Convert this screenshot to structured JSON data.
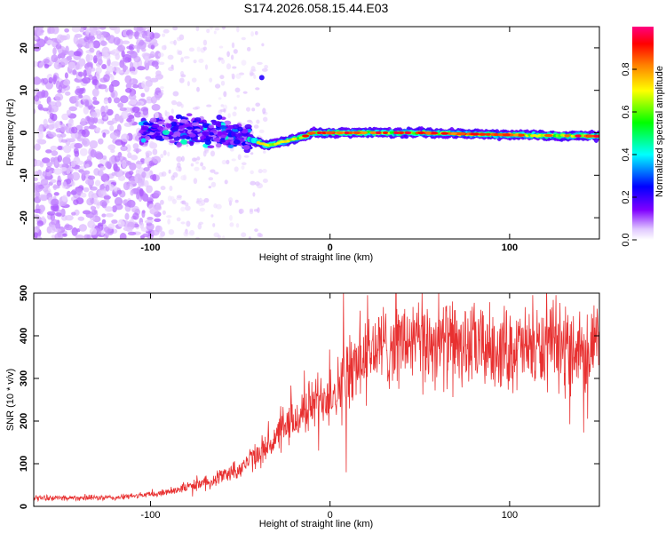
{
  "title": "S174.2026.058.15.44.E03",
  "chart_data": [
    {
      "type": "heatmap",
      "name": "spectrogram",
      "xlabel": "Height of straight line (km)",
      "ylabel": "Frequency (Hz)",
      "xlim": [
        -165,
        150
      ],
      "ylim": [
        -25,
        25
      ],
      "xticks": [
        -100,
        0,
        100
      ],
      "xtick_labels": [
        "-100",
        "0",
        "100"
      ],
      "yticks": [
        20,
        10,
        0,
        -10,
        -20
      ],
      "ytick_labels": [
        "20",
        "10",
        "0",
        "-10",
        "-20"
      ],
      "colorbar": {
        "label": "Normalized spectral amplitude",
        "range": [
          0.0,
          1.0
        ],
        "ticks": [
          0.0,
          0.2,
          0.4,
          0.6,
          0.8
        ],
        "tick_labels": [
          "0.0",
          "0.2",
          "0.4",
          "0.6",
          "0.8"
        ],
        "colormap": [
          "#ffffff",
          "#cc99ff",
          "#8000ff",
          "#0000ff",
          "#00ffff",
          "#00ff00",
          "#ffff00",
          "#ff8000",
          "#ff0000",
          "#ff0080"
        ]
      },
      "feature": {
        "description_points_x": [
          -100,
          -80,
          -60,
          -45,
          -35,
          -25,
          -15,
          -10,
          0,
          50,
          100,
          150
        ],
        "description_points_freq": [
          0.5,
          1.0,
          0.0,
          -1.5,
          -3.0,
          -2.0,
          -1.0,
          0.0,
          0.0,
          0.0,
          -0.5,
          -0.8
        ]
      }
    },
    {
      "type": "line",
      "name": "snr",
      "xlabel": "Height of straight line (km)",
      "ylabel": "SNR (10 * v/v)",
      "xlim": [
        -165,
        150
      ],
      "ylim": [
        0,
        500
      ],
      "xticks": [
        -100,
        0,
        100
      ],
      "xtick_labels": [
        "-100",
        "0",
        "100"
      ],
      "yticks": [
        0,
        100,
        200,
        300,
        400,
        500
      ],
      "ytick_labels": [
        "0",
        "100",
        "200",
        "300",
        "400",
        "500"
      ],
      "color": "#e83030",
      "trend": {
        "x": [
          -165,
          -120,
          -95,
          -70,
          -50,
          -35,
          -20,
          -10,
          0,
          5,
          8,
          10,
          15,
          25,
          40,
          60,
          80,
          100,
          120,
          150
        ],
        "y": [
          20,
          20,
          30,
          55,
          90,
          140,
          200,
          240,
          270,
          280,
          300,
          310,
          340,
          370,
          385,
          385,
          375,
          370,
          370,
          375
        ]
      },
      "events": [
        {
          "x": 7.5,
          "y": 500,
          "note": "spike"
        },
        {
          "x": 9,
          "y": 80,
          "note": "dip"
        }
      ]
    }
  ]
}
